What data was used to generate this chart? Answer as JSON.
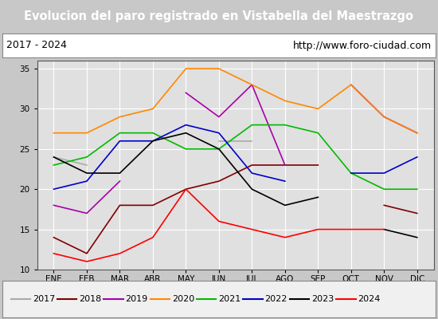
{
  "title": "Evolucion del paro registrado en Vistabella del Maestrazgo",
  "subtitle_left": "2017 - 2024",
  "subtitle_right": "http://www.foro-ciudad.com",
  "months": [
    "ENE",
    "FEB",
    "MAR",
    "ABR",
    "MAY",
    "JUN",
    "JUL",
    "AGO",
    "SEP",
    "OCT",
    "NOV",
    "DIC"
  ],
  "ylim": [
    10,
    36
  ],
  "yticks": [
    10,
    15,
    20,
    25,
    30,
    35
  ],
  "series": {
    "2017": {
      "color": "#aaaaaa",
      "values": [
        24,
        23,
        null,
        null,
        null,
        26,
        26,
        null,
        null,
        null,
        null,
        null
      ]
    },
    "2018": {
      "color": "#800000",
      "values": [
        14,
        12,
        18,
        18,
        20,
        21,
        23,
        23,
        23,
        null,
        18,
        17
      ]
    },
    "2019": {
      "color": "#aa00aa",
      "values": [
        18,
        17,
        21,
        null,
        32,
        29,
        33,
        23,
        null,
        33,
        29,
        27
      ]
    },
    "2020": {
      "color": "#ff8800",
      "values": [
        27,
        27,
        29,
        30,
        35,
        35,
        33,
        31,
        30,
        33,
        29,
        27
      ]
    },
    "2021": {
      "color": "#00bb00",
      "values": [
        23,
        24,
        27,
        27,
        25,
        25,
        28,
        28,
        27,
        22,
        20,
        20
      ]
    },
    "2022": {
      "color": "#0000cc",
      "values": [
        20,
        21,
        26,
        26,
        28,
        27,
        22,
        21,
        null,
        22,
        22,
        24
      ]
    },
    "2023": {
      "color": "#000000",
      "values": [
        24,
        22,
        22,
        26,
        27,
        25,
        20,
        18,
        19,
        null,
        15,
        14
      ]
    },
    "2024": {
      "color": "#ff0000",
      "values": [
        12,
        11,
        12,
        14,
        20,
        16,
        15,
        14,
        15,
        15,
        15,
        null
      ]
    }
  },
  "title_bg": "#4472c4",
  "title_color": "#ffffff",
  "subtitle_bg": "#ffffff",
  "subtitle_color": "#000000",
  "plot_bg": "#e0e0e0",
  "grid_color": "#ffffff",
  "legend_bg": "#f0f0f0",
  "fig_bg": "#c8c8c8"
}
